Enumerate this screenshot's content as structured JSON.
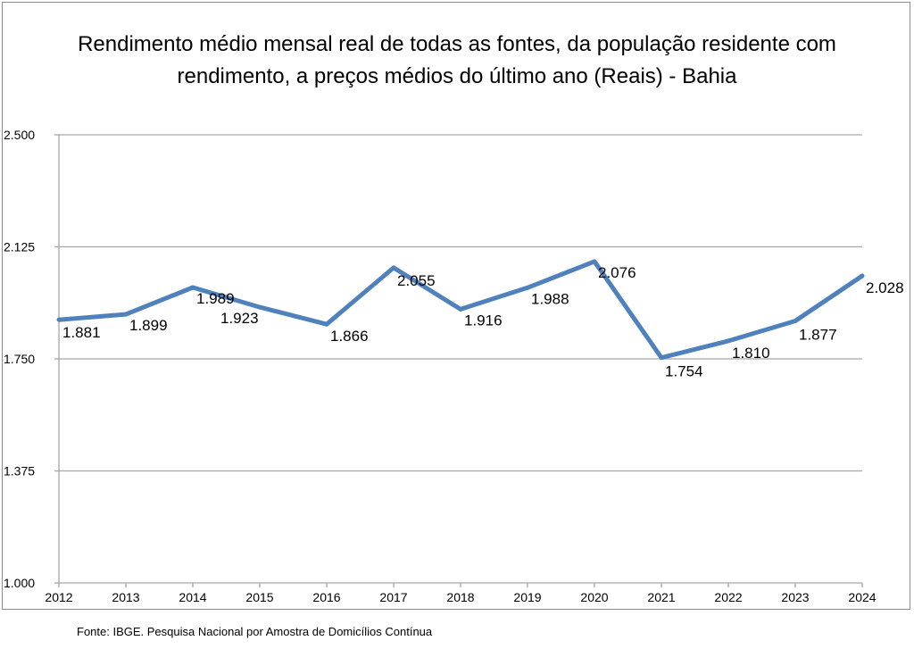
{
  "chart_data": {
    "type": "line",
    "title_lines": [
      "Rendimento médio mensal real de todas as fontes, da população residente com",
      "rendimento, a preços médios do último ano (Reais) - Bahia"
    ],
    "categories": [
      "2012",
      "2013",
      "2014",
      "2015",
      "2016",
      "2017",
      "2018",
      "2019",
      "2020",
      "2021",
      "2022",
      "2023",
      "2024"
    ],
    "values": [
      1881,
      1899,
      1989,
      1923,
      1866,
      2055,
      1916,
      1988,
      2076,
      1754,
      1810,
      1877,
      2028
    ],
    "data_labels": [
      "1.881",
      "1.899",
      "1.989",
      "1.923",
      "1.866",
      "2.055",
      "1.916",
      "1.988",
      "2.076",
      "1.754",
      "1.810",
      "1.877",
      "2.028"
    ],
    "yticks": [
      1000,
      1375,
      1750,
      2125,
      2500
    ],
    "ytick_labels": [
      "1.000",
      "1.375",
      "1.750",
      "2.125",
      "2.500"
    ],
    "ylim": [
      1000,
      2500
    ],
    "grid": true,
    "legend": "none",
    "line_color": "#4f81bd",
    "grid_color": "#a6a6a6"
  },
  "source": "Fonte: IBGE. Pesquisa Nacional por Amostra de Domicílios Contínua"
}
